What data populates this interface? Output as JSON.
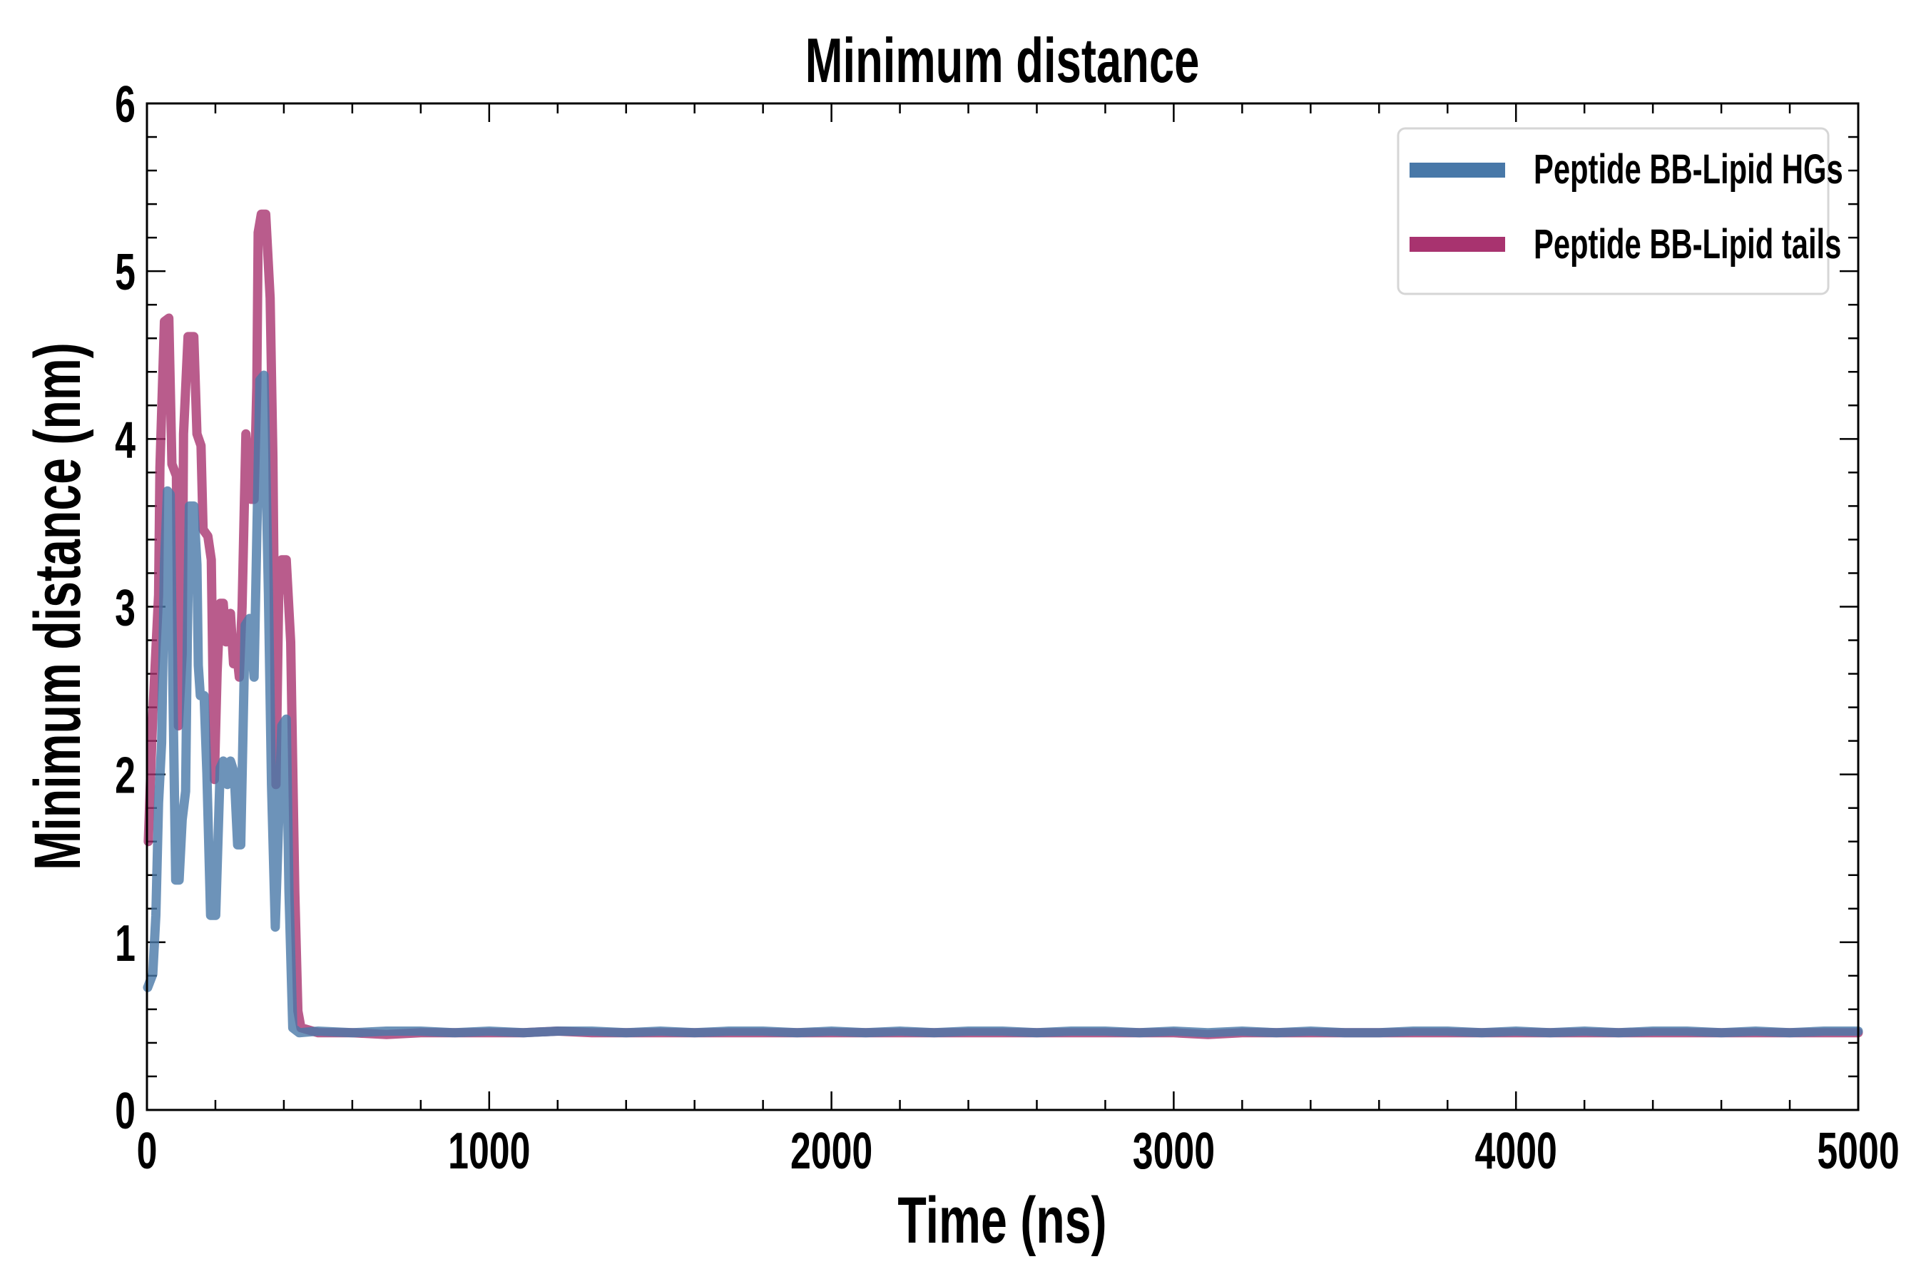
{
  "chart_data": {
    "type": "line",
    "title": "Minimum distance",
    "xlabel": "Time (ns)",
    "ylabel": "Minimum distance (nm)",
    "xlim": [
      0,
      5000
    ],
    "ylim": [
      0,
      6
    ],
    "xticks": [
      0,
      1000,
      2000,
      3000,
      4000,
      5000
    ],
    "yticks": [
      0,
      1,
      2,
      3,
      4,
      5,
      6
    ],
    "xminor_step": 200,
    "yminor_step": 0.2,
    "grid": false,
    "legend_position": "top-right",
    "series": [
      {
        "name": "Peptide BB-Lipid HGs",
        "color": "#4878a8",
        "x": [
          2,
          17,
          26,
          34,
          43,
          51,
          60,
          68,
          77,
          84,
          94,
          103,
          113,
          118,
          124,
          137,
          146,
          150,
          156,
          167,
          175,
          186,
          201,
          214,
          223,
          235,
          244,
          255,
          265,
          274,
          287,
          300,
          313,
          321,
          330,
          342,
          355,
          364,
          375,
          385,
          394,
          407,
          415,
          426,
          445,
          500,
          600,
          700,
          800,
          900,
          1000,
          1100,
          1200,
          1300,
          1400,
          1500,
          1600,
          1700,
          1800,
          1900,
          2000,
          2100,
          2200,
          2300,
          2400,
          2500,
          2600,
          2700,
          2800,
          2900,
          3000,
          3100,
          3200,
          3300,
          3400,
          3500,
          3600,
          3700,
          3800,
          3900,
          4000,
          4100,
          4200,
          4300,
          4400,
          4500,
          4600,
          4700,
          4800,
          4900,
          5000
        ],
        "y": [
          0.73,
          0.81,
          1.16,
          1.83,
          2.19,
          3.25,
          3.69,
          3.67,
          2.36,
          1.37,
          1.37,
          1.73,
          1.9,
          2.79,
          3.6,
          3.6,
          3.25,
          2.65,
          2.47,
          2.47,
          2.01,
          1.16,
          1.16,
          2.04,
          2.08,
          1.94,
          2.08,
          2.01,
          1.58,
          1.58,
          2.89,
          2.93,
          2.58,
          3.42,
          4.35,
          4.38,
          3.07,
          1.94,
          1.09,
          1.73,
          2.29,
          2.33,
          1.3,
          0.49,
          0.46,
          0.47,
          0.46,
          0.47,
          0.47,
          0.46,
          0.47,
          0.46,
          0.47,
          0.47,
          0.46,
          0.47,
          0.46,
          0.47,
          0.47,
          0.46,
          0.47,
          0.46,
          0.47,
          0.46,
          0.47,
          0.47,
          0.46,
          0.47,
          0.47,
          0.46,
          0.47,
          0.46,
          0.47,
          0.46,
          0.47,
          0.46,
          0.46,
          0.47,
          0.47,
          0.46,
          0.47,
          0.46,
          0.47,
          0.46,
          0.47,
          0.47,
          0.46,
          0.47,
          0.46,
          0.47,
          0.47
        ]
      },
      {
        "name": "Peptide BB-Lipid tails",
        "color": "#a8336f",
        "x": [
          4,
          17,
          34,
          38,
          51,
          64,
          73,
          86,
          92,
          103,
          107,
          120,
          137,
          146,
          158,
          164,
          178,
          188,
          197,
          205,
          214,
          223,
          231,
          244,
          253,
          261,
          270,
          278,
          289,
          304,
          313,
          321,
          325,
          334,
          347,
          360,
          368,
          377,
          385,
          394,
          407,
          420,
          432,
          441,
          450,
          500,
          600,
          700,
          800,
          900,
          1000,
          1100,
          1200,
          1300,
          1400,
          1500,
          1600,
          1700,
          1800,
          1900,
          2000,
          2100,
          2200,
          2300,
          2400,
          2500,
          2600,
          2700,
          2800,
          2900,
          3000,
          3100,
          3200,
          3300,
          3400,
          3500,
          3600,
          3700,
          3800,
          3900,
          4000,
          4100,
          4200,
          4300,
          4400,
          4500,
          4600,
          4700,
          4800,
          4900,
          5000
        ],
        "y": [
          1.6,
          2.36,
          3.07,
          3.83,
          4.7,
          4.72,
          3.85,
          3.78,
          2.29,
          2.72,
          4.03,
          4.61,
          4.61,
          4.03,
          3.96,
          3.46,
          3.42,
          3.28,
          1.97,
          2.61,
          3.02,
          3.02,
          2.79,
          2.96,
          2.66,
          2.75,
          2.58,
          3.0,
          4.03,
          3.64,
          3.64,
          4.31,
          5.23,
          5.34,
          5.34,
          4.84,
          3.89,
          1.94,
          3.07,
          3.28,
          3.28,
          2.79,
          1.3,
          0.59,
          0.49,
          0.46,
          0.46,
          0.45,
          0.46,
          0.46,
          0.46,
          0.46,
          0.47,
          0.46,
          0.46,
          0.46,
          0.46,
          0.46,
          0.46,
          0.46,
          0.46,
          0.46,
          0.46,
          0.46,
          0.46,
          0.46,
          0.46,
          0.46,
          0.46,
          0.46,
          0.46,
          0.45,
          0.46,
          0.46,
          0.46,
          0.46,
          0.46,
          0.46,
          0.46,
          0.46,
          0.46,
          0.46,
          0.46,
          0.46,
          0.46,
          0.46,
          0.46,
          0.46,
          0.46,
          0.46,
          0.46
        ]
      }
    ]
  }
}
